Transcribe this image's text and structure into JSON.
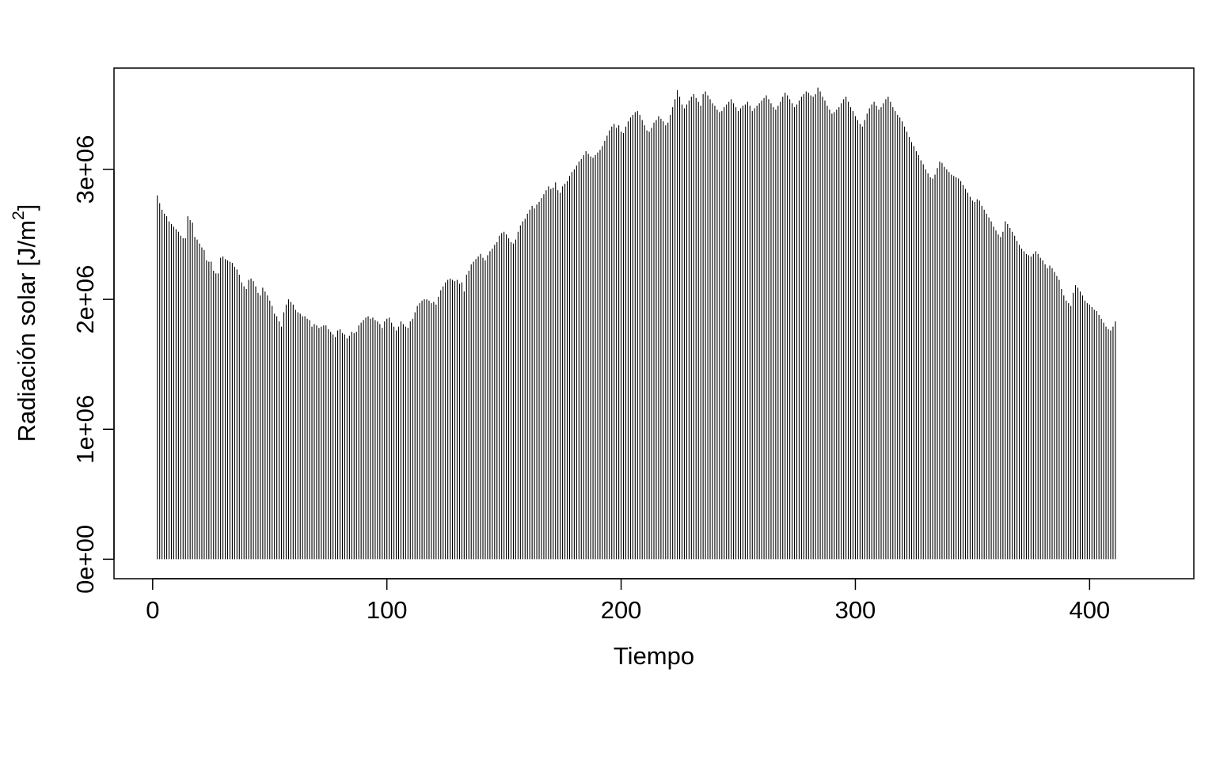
{
  "chart_data": {
    "type": "bar",
    "title": "",
    "xlabel": "Tiempo",
    "ylabel": "Radiación solar",
    "ylabel_unit_prefix": "[J/m",
    "ylabel_unit_exp": "2",
    "ylabel_unit_suffix": "]",
    "xlim": [
      -16.5,
      444.5
    ],
    "ylim": [
      -150000,
      3780000
    ],
    "x_ticks": [
      {
        "value": 0,
        "label": "0"
      },
      {
        "value": 100,
        "label": "100"
      },
      {
        "value": 200,
        "label": "200"
      },
      {
        "value": 300,
        "label": "300"
      },
      {
        "value": 400,
        "label": "400"
      }
    ],
    "y_ticks": [
      {
        "value": 0,
        "label": "0e+00"
      },
      {
        "value": 1000000,
        "label": "1e+06"
      },
      {
        "value": 2000000,
        "label": "2e+06"
      },
      {
        "value": 3000000,
        "label": "3e+06"
      }
    ],
    "x_start": 2,
    "x_step": 1,
    "grid": false,
    "legend": "none",
    "bar_color": "#000000",
    "values": [
      2800000,
      2740000,
      2690000,
      2660000,
      2640000,
      2600000,
      2580000,
      2560000,
      2540000,
      2520000,
      2490000,
      2470000,
      2470000,
      2640000,
      2610000,
      2590000,
      2480000,
      2460000,
      2430000,
      2400000,
      2380000,
      2300000,
      2290000,
      2290000,
      2220000,
      2200000,
      2200000,
      2320000,
      2330000,
      2310000,
      2300000,
      2290000,
      2280000,
      2250000,
      2230000,
      2190000,
      2130000,
      2100000,
      2080000,
      2150000,
      2160000,
      2140000,
      2100000,
      2050000,
      2030000,
      2090000,
      2060000,
      2030000,
      1990000,
      1950000,
      1890000,
      1870000,
      1830000,
      1790000,
      1900000,
      1960000,
      2000000,
      1980000,
      1960000,
      1920000,
      1900000,
      1890000,
      1870000,
      1870000,
      1850000,
      1840000,
      1790000,
      1810000,
      1800000,
      1780000,
      1790000,
      1800000,
      1800000,
      1770000,
      1750000,
      1730000,
      1710000,
      1760000,
      1770000,
      1740000,
      1730000,
      1700000,
      1720000,
      1750000,
      1740000,
      1750000,
      1800000,
      1820000,
      1840000,
      1860000,
      1870000,
      1850000,
      1860000,
      1840000,
      1830000,
      1810000,
      1780000,
      1830000,
      1850000,
      1860000,
      1820000,
      1790000,
      1760000,
      1790000,
      1830000,
      1810000,
      1790000,
      1780000,
      1830000,
      1850000,
      1900000,
      1950000,
      1970000,
      1990000,
      2000000,
      2000000,
      1990000,
      1970000,
      1980000,
      1960000,
      2020000,
      2070000,
      2100000,
      2130000,
      2150000,
      2160000,
      2150000,
      2140000,
      2150000,
      2120000,
      2130000,
      2060000,
      2190000,
      2220000,
      2270000,
      2290000,
      2310000,
      2330000,
      2350000,
      2320000,
      2300000,
      2340000,
      2370000,
      2390000,
      2420000,
      2440000,
      2490000,
      2510000,
      2520000,
      2500000,
      2470000,
      2440000,
      2430000,
      2460000,
      2520000,
      2570000,
      2600000,
      2620000,
      2660000,
      2690000,
      2720000,
      2700000,
      2730000,
      2750000,
      2780000,
      2810000,
      2840000,
      2870000,
      2850000,
      2860000,
      2900000,
      2840000,
      2820000,
      2870000,
      2890000,
      2910000,
      2950000,
      2980000,
      3000000,
      3030000,
      3060000,
      3080000,
      3110000,
      3140000,
      3120000,
      3100000,
      3090000,
      3110000,
      3130000,
      3150000,
      3180000,
      3220000,
      3260000,
      3300000,
      3330000,
      3350000,
      3320000,
      3340000,
      3290000,
      3280000,
      3330000,
      3370000,
      3400000,
      3420000,
      3440000,
      3450000,
      3420000,
      3380000,
      3340000,
      3300000,
      3290000,
      3320000,
      3360000,
      3380000,
      3410000,
      3390000,
      3370000,
      3340000,
      3360000,
      3420000,
      3480000,
      3540000,
      3610000,
      3560000,
      3500000,
      3470000,
      3500000,
      3530000,
      3560000,
      3580000,
      3550000,
      3520000,
      3490000,
      3580000,
      3600000,
      3570000,
      3540000,
      3510000,
      3490000,
      3460000,
      3440000,
      3450000,
      3480000,
      3500000,
      3520000,
      3540000,
      3510000,
      3480000,
      3450000,
      3470000,
      3490000,
      3500000,
      3520000,
      3490000,
      3450000,
      3470000,
      3490000,
      3510000,
      3530000,
      3550000,
      3570000,
      3540000,
      3510000,
      3480000,
      3460000,
      3490000,
      3520000,
      3560000,
      3590000,
      3570000,
      3540000,
      3510000,
      3480000,
      3500000,
      3530000,
      3560000,
      3580000,
      3600000,
      3590000,
      3570000,
      3560000,
      3580000,
      3630000,
      3600000,
      3560000,
      3530000,
      3490000,
      3460000,
      3430000,
      3440000,
      3460000,
      3480000,
      3510000,
      3540000,
      3560000,
      3520000,
      3480000,
      3450000,
      3410000,
      3380000,
      3350000,
      3330000,
      3380000,
      3430000,
      3470000,
      3500000,
      3520000,
      3490000,
      3460000,
      3480000,
      3510000,
      3540000,
      3560000,
      3520000,
      3480000,
      3450000,
      3420000,
      3400000,
      3370000,
      3330000,
      3290000,
      3250000,
      3210000,
      3180000,
      3140000,
      3110000,
      3070000,
      3040000,
      3000000,
      2970000,
      2940000,
      2930000,
      2960000,
      3010000,
      3060000,
      3050000,
      3020000,
      3000000,
      2980000,
      2960000,
      2950000,
      2940000,
      2930000,
      2910000,
      2880000,
      2850000,
      2820000,
      2790000,
      2760000,
      2750000,
      2770000,
      2760000,
      2720000,
      2690000,
      2660000,
      2630000,
      2600000,
      2560000,
      2530000,
      2500000,
      2480000,
      2520000,
      2600000,
      2580000,
      2550000,
      2520000,
      2490000,
      2450000,
      2420000,
      2390000,
      2370000,
      2350000,
      2340000,
      2330000,
      2350000,
      2370000,
      2350000,
      2320000,
      2300000,
      2270000,
      2240000,
      2260000,
      2240000,
      2210000,
      2180000,
      2150000,
      2080000,
      2030000,
      1990000,
      1970000,
      1950000,
      2050000,
      2110000,
      2090000,
      2060000,
      2030000,
      1990000,
      1970000,
      1960000,
      1940000,
      1920000,
      1910000,
      1880000,
      1850000,
      1820000,
      1790000,
      1770000,
      1760000,
      1790000,
      1830000
    ]
  }
}
